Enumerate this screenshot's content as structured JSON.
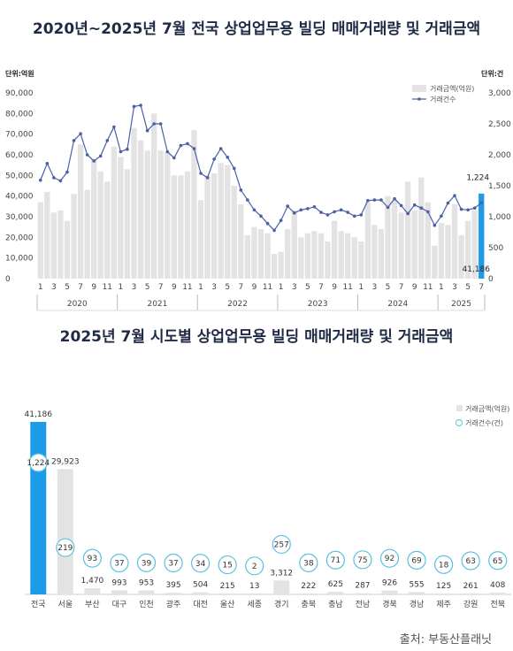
{
  "chart_data": [
    {
      "type": "bar",
      "title": "2020년~2025년 7월 전국 상업업무용 빌딩 매매거래량 및 거래금액",
      "left_unit": "단위:억원",
      "right_unit": "단위:건",
      "left_ticks": [
        "0",
        "10,000",
        "20,000",
        "30,000",
        "40,000",
        "50,000",
        "60,000",
        "70,000",
        "80,000",
        "90,000"
      ],
      "right_ticks": [
        "0",
        "500",
        "1,000",
        "1,500",
        "2,000",
        "2,500",
        "3,000"
      ],
      "ylim": [
        0,
        90000
      ],
      "y2lim": [
        0,
        3000
      ],
      "month_labels": [
        "1",
        "",
        "3",
        "",
        "5",
        "",
        "7",
        "",
        "9",
        "",
        "11",
        ""
      ],
      "years": [
        "2020",
        "2021",
        "2022",
        "2023",
        "2024",
        "2025"
      ],
      "last_year_months": [
        "1",
        "",
        "3",
        "",
        "5",
        "",
        "7"
      ],
      "legend": {
        "bar": "거래금액(억원)",
        "line": "거래건수"
      },
      "series": [
        {
          "name": "거래금액(억원)",
          "kind": "bar",
          "values": [
            37000,
            42000,
            32000,
            33000,
            28000,
            41000,
            65000,
            43000,
            58000,
            52000,
            47000,
            64000,
            59000,
            53000,
            73000,
            67000,
            62000,
            80000,
            62000,
            61000,
            50000,
            50000,
            52000,
            72000,
            38000,
            50000,
            51000,
            56000,
            55000,
            45000,
            36000,
            21000,
            25000,
            24000,
            22000,
            12000,
            13000,
            24000,
            33000,
            20000,
            22000,
            23000,
            22000,
            18000,
            28000,
            23000,
            22000,
            20000,
            18000,
            37000,
            26000,
            24000,
            40000,
            38000,
            32000,
            47000,
            33000,
            49000,
            37000,
            16000,
            27000,
            26000,
            36000,
            21000,
            28000,
            33000,
            41186
          ]
        },
        {
          "name": "거래건수",
          "kind": "line",
          "values": [
            1590,
            1860,
            1630,
            1580,
            1720,
            2230,
            2340,
            2000,
            1900,
            1980,
            2230,
            2450,
            2050,
            2090,
            2780,
            2800,
            2390,
            2500,
            2500,
            2050,
            1950,
            2150,
            2180,
            2100,
            1700,
            1630,
            1930,
            2100,
            1960,
            1780,
            1430,
            1270,
            1110,
            1010,
            890,
            780,
            940,
            1170,
            1060,
            1110,
            1130,
            1160,
            1070,
            1030,
            1080,
            1110,
            1070,
            1010,
            1030,
            1260,
            1270,
            1270,
            1150,
            1290,
            1180,
            1050,
            1190,
            1140,
            1080,
            860,
            1010,
            1220,
            1340,
            1120,
            1110,
            1140,
            1224
          ]
        }
      ],
      "annotations": {
        "last_count": "1,224",
        "last_amount": "41,186"
      }
    },
    {
      "type": "bar",
      "title": "2025년 7월 시도별 상업업무용 빌딩 매매거래량 및 거래금액",
      "categories": [
        "전국",
        "서울",
        "부산",
        "대구",
        "인천",
        "광주",
        "대전",
        "울산",
        "세종",
        "경기",
        "충북",
        "충남",
        "전남",
        "경북",
        "경남",
        "제주",
        "강원",
        "전북"
      ],
      "amount_labels": [
        "41,186",
        "29,923",
        "1,470",
        "993",
        "953",
        "395",
        "504",
        "215",
        "13",
        "3,312",
        "222",
        "625",
        "287",
        "926",
        "555",
        "125",
        "261",
        "408"
      ],
      "amounts": [
        41186,
        29923,
        1470,
        993,
        953,
        395,
        504,
        215,
        13,
        3312,
        222,
        625,
        287,
        926,
        555,
        125,
        261,
        408
      ],
      "counts": [
        1224,
        219,
        93,
        37,
        39,
        37,
        34,
        15,
        2,
        257,
        38,
        71,
        75,
        92,
        69,
        18,
        63,
        65
      ],
      "count_labels": [
        "1,224",
        "219",
        "93",
        "37",
        "39",
        "37",
        "34",
        "15",
        "2",
        "257",
        "38",
        "71",
        "75",
        "92",
        "69",
        "18",
        "63",
        "65"
      ],
      "legend": {
        "bar": "거래금액(억원)",
        "line": "거래건수(건)"
      }
    }
  ],
  "source": "출처: 부동산플래닛",
  "colors": {
    "bar": "#e3e3e3",
    "highlight": "#1e9be8",
    "line": "#4a5fa6",
    "bubble": "#5bc0e0",
    "title": "#1f2a44"
  }
}
